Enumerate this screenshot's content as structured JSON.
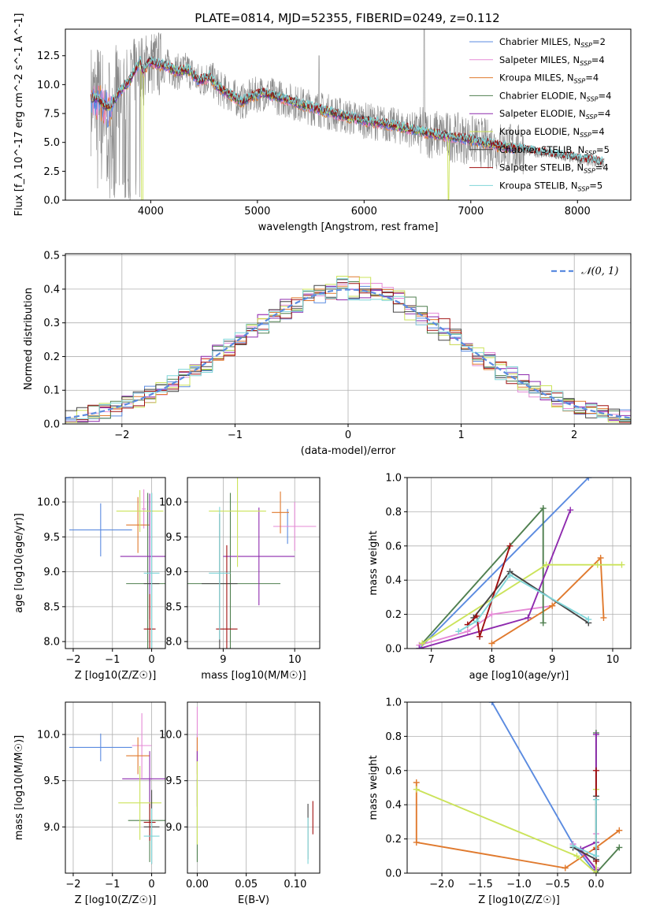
{
  "colors": {
    "chabrier_miles": "#5b8be0",
    "salpeter_miles": "#e58ad6",
    "kroupa_miles": "#e07a2e",
    "chabrier_elodie": "#4f7f4f",
    "salpeter_elodie": "#8e2aae",
    "kroupa_elodie": "#cbe35a",
    "chabrier_stelib": "#444444",
    "salpeter_stelib": "#a01010",
    "kroupa_stelib": "#7fd5d8",
    "observed": "#888888",
    "normal": "#5b8be0"
  },
  "chart_data": [
    {
      "type": "line",
      "title": "PLATE=0814, MJD=52355, FIBERID=0249, z=0.112",
      "xlabel": "wavelength [Angstrom, rest frame]",
      "ylabel": "Flux [f_λ 10^-17 erg cm^-2 s^-1 A^-1]",
      "xlim": [
        3200,
        8500
      ],
      "ylim": [
        0,
        14.8
      ],
      "xticks": [
        4000,
        5000,
        6000,
        7000,
        8000
      ],
      "yticks": [
        0.0,
        2.5,
        5.0,
        7.5,
        10.0,
        12.5
      ],
      "legend_placement": "upper right",
      "legend": [
        {
          "label": "Chabrier MILES, N_SSP=2",
          "color_key": "chabrier_miles"
        },
        {
          "label": "Salpeter MILES, N_SSP=4",
          "color_key": "salpeter_miles"
        },
        {
          "label": "Kroupa MILES, N_SSP=4",
          "color_key": "kroupa_miles"
        },
        {
          "label": "Chabrier ELODIE, N_SSP=4",
          "color_key": "chabrier_elodie"
        },
        {
          "label": "Salpeter ELODIE, N_SSP=4",
          "color_key": "salpeter_elodie"
        },
        {
          "label": "Kroupa ELODIE, N_SSP=4",
          "color_key": "kroupa_elodie"
        },
        {
          "label": "Chabrier STELIB, N_SSP=5",
          "color_key": "chabrier_stelib"
        },
        {
          "label": "Salpeter STELIB, N_SSP=4",
          "color_key": "salpeter_stelib"
        },
        {
          "label": "Kroupa STELIB, N_SSP=5",
          "color_key": "kroupa_stelib"
        }
      ],
      "model_continuum": {
        "x": [
          3500,
          3560,
          3620,
          3700,
          3800,
          3900,
          3930,
          3980,
          4050,
          4150,
          4250,
          4350,
          4450,
          4550,
          4650,
          4750,
          4860,
          4950,
          5050,
          5200,
          5400,
          5600,
          5800,
          6000,
          6200,
          6400,
          6600,
          6800,
          7000,
          7200,
          7400
        ],
        "y": [
          8.8,
          8.2,
          8.0,
          9.3,
          10.3,
          12.0,
          11.0,
          12.0,
          11.8,
          11.6,
          11.1,
          11.3,
          10.3,
          10.7,
          9.6,
          9.1,
          8.5,
          9.0,
          9.3,
          8.9,
          8.3,
          7.8,
          7.3,
          6.9,
          6.6,
          6.2,
          5.8,
          5.5,
          5.2,
          4.8,
          4.5
        ]
      },
      "observed_extends_to": 8250
    },
    {
      "type": "line",
      "xlabel": "(data-model)/error",
      "ylabel": "Normed distribution",
      "xlim": [
        -2.5,
        2.5
      ],
      "ylim": [
        0,
        0.505
      ],
      "xticks": [
        -2,
        -1,
        0,
        1,
        2
      ],
      "yticks": [
        0.0,
        0.1,
        0.2,
        0.3,
        0.4,
        0.5
      ],
      "legend_placement": "upper right",
      "legend": [
        {
          "label": "𝒩(0, 1)",
          "color_key": "normal"
        }
      ],
      "bin_width": 0.1,
      "bin_start": -2.5
    },
    {
      "type": "scatter",
      "xlabel": "Z [log10(Z/Z☉)]",
      "ylabel": "age [log10(age/yr)]",
      "xlim": [
        -2.2,
        0.35
      ],
      "ylim": [
        7.9,
        10.35
      ],
      "xticks": [
        -2,
        -1,
        0
      ],
      "yticks": [
        8.0,
        8.5,
        9.0,
        9.5,
        10.0
      ],
      "points": [
        {
          "k": "chabrier_miles",
          "x": -1.3,
          "y": 9.6,
          "xe": 0.8,
          "ye": 0.38
        },
        {
          "k": "salpeter_miles",
          "x": -0.2,
          "y": 9.9,
          "xe": 0.05,
          "ye": 0.28
        },
        {
          "k": "kroupa_miles",
          "x": -0.35,
          "y": 9.67,
          "xe": 0.3,
          "ye": 0.4
        },
        {
          "k": "chabrier_elodie",
          "x": -0.1,
          "y": 8.83,
          "xe": 0.55,
          "ye": 1.3
        },
        {
          "k": "salpeter_elodie",
          "x": -0.05,
          "y": 9.22,
          "xe": 0.75,
          "ye": 0.9
        },
        {
          "k": "kroupa_elodie",
          "x": -0.3,
          "y": 9.87,
          "xe": 0.6,
          "ye": 0.3
        },
        {
          "k": "chabrier_stelib",
          "x": 0.0,
          "y": 8.83,
          "xe": 0.2,
          "ye": 1.3
        },
        {
          "k": "salpeter_stelib",
          "x": -0.05,
          "y": 8.18,
          "xe": 0.15,
          "ye": 0.5
        },
        {
          "k": "kroupa_stelib",
          "x": 0.0,
          "y": 8.98,
          "xe": 0.2,
          "ye": 1.15
        }
      ]
    },
    {
      "type": "scatter",
      "xlabel": "mass [log10(M/M☉)]",
      "xlim": [
        8.5,
        10.35
      ],
      "ylim": [
        7.9,
        10.35
      ],
      "xticks": [
        9,
        10
      ],
      "yticks": [
        8.0,
        8.5,
        9.0,
        9.5,
        10.0
      ],
      "points": [
        {
          "k": "chabrier_miles",
          "x": 9.9,
          "y": 9.65,
          "xe": 0.1,
          "ye": 0.25
        },
        {
          "k": "salpeter_miles",
          "x": 10.0,
          "y": 9.65,
          "xe": 0.3,
          "ye": 0.35
        },
        {
          "k": "kroupa_miles",
          "x": 9.8,
          "y": 9.85,
          "xe": 0.12,
          "ye": 0.3
        },
        {
          "k": "chabrier_elodie",
          "x": 9.1,
          "y": 8.83,
          "xe": 0.7,
          "ye": 1.3
        },
        {
          "k": "salpeter_elodie",
          "x": 9.5,
          "y": 9.22,
          "xe": 0.5,
          "ye": 0.7
        },
        {
          "k": "kroupa_elodie",
          "x": 9.2,
          "y": 9.87,
          "xe": 0.4,
          "ye": 0.8
        },
        {
          "k": "chabrier_stelib",
          "x": 8.95,
          "y": 8.83,
          "xe": 0.25,
          "ye": 1.0
        },
        {
          "k": "salpeter_stelib",
          "x": 9.05,
          "y": 8.18,
          "xe": 0.15,
          "ye": 1.2
        },
        {
          "k": "kroupa_stelib",
          "x": 8.95,
          "y": 8.98,
          "xe": 0.15,
          "ye": 0.95
        }
      ]
    },
    {
      "type": "line",
      "xlabel": "age [log10(age/yr)]",
      "ylabel": "mass weight",
      "xlim": [
        6.6,
        10.3
      ],
      "ylim": [
        0,
        1.0
      ],
      "xticks": [
        7,
        8,
        9,
        10
      ],
      "yticks": [
        0.0,
        0.2,
        0.4,
        0.6,
        0.8,
        1.0
      ],
      "series": [
        {
          "k": "chabrier_miles",
          "x": [
            6.8,
            9.6
          ],
          "y": [
            0.0,
            1.0
          ]
        },
        {
          "k": "salpeter_miles",
          "x": [
            6.8,
            7.6,
            8.0,
            9.0
          ],
          "y": [
            0.02,
            0.1,
            0.2,
            0.25
          ]
        },
        {
          "k": "kroupa_miles",
          "x": [
            8.0,
            9.0,
            9.8,
            9.85
          ],
          "y": [
            0.03,
            0.25,
            0.53,
            0.18
          ]
        },
        {
          "k": "chabrier_elodie",
          "x": [
            6.85,
            8.85,
            8.85
          ],
          "y": [
            0.03,
            0.82,
            0.15
          ]
        },
        {
          "k": "salpeter_elodie",
          "x": [
            6.8,
            8.6,
            9.3
          ],
          "y": [
            0.0,
            0.18,
            0.81
          ]
        },
        {
          "k": "kroupa_elodie",
          "x": [
            6.85,
            8.9,
            9.75,
            10.15
          ],
          "y": [
            0.03,
            0.49,
            0.49,
            0.49
          ]
        },
        {
          "k": "chabrier_stelib",
          "x": [
            7.7,
            8.3,
            9.6
          ],
          "y": [
            0.18,
            0.45,
            0.15
          ]
        },
        {
          "k": "salpeter_stelib",
          "x": [
            7.6,
            7.75,
            7.8,
            8.3
          ],
          "y": [
            0.14,
            0.19,
            0.07,
            0.6
          ]
        },
        {
          "k": "kroupa_stelib",
          "x": [
            7.45,
            7.75,
            8.3,
            9.6
          ],
          "y": [
            0.1,
            0.16,
            0.43,
            0.17
          ]
        }
      ]
    },
    {
      "type": "scatter",
      "xlabel": "Z [log10(Z/Z☉)]",
      "ylabel": "mass [log10(M/M☉)]",
      "xlim": [
        -2.2,
        0.35
      ],
      "ylim": [
        8.5,
        10.35
      ],
      "xticks": [
        -2,
        -1,
        0
      ],
      "yticks": [
        9.0,
        9.5,
        10.0
      ],
      "points": [
        {
          "k": "chabrier_miles",
          "x": -1.3,
          "y": 9.86,
          "xe": 0.8,
          "ye": 0.15
        },
        {
          "k": "salpeter_miles",
          "x": -0.25,
          "y": 9.88,
          "xe": 0.25,
          "ye": 0.35
        },
        {
          "k": "kroupa_miles",
          "x": -0.35,
          "y": 9.77,
          "xe": 0.3,
          "ye": 0.2
        },
        {
          "k": "chabrier_elodie",
          "x": -0.05,
          "y": 9.07,
          "xe": 0.55,
          "ye": 0.45
        },
        {
          "k": "salpeter_elodie",
          "x": -0.05,
          "y": 9.52,
          "xe": 0.7,
          "ye": 0.3
        },
        {
          "k": "kroupa_elodie",
          "x": -0.3,
          "y": 9.26,
          "xe": 0.55,
          "ye": 0.4
        },
        {
          "k": "chabrier_stelib",
          "x": 0.0,
          "y": 9.0,
          "xe": 0.2,
          "ye": 0.4
        },
        {
          "k": "salpeter_stelib",
          "x": -0.05,
          "y": 9.05,
          "xe": 0.15,
          "ye": 0.2
        },
        {
          "k": "kroupa_stelib",
          "x": 0.0,
          "y": 8.9,
          "xe": 0.2,
          "ye": 0.3
        }
      ]
    },
    {
      "type": "scatter",
      "xlabel": "E(B-V)",
      "xlim": [
        -0.01,
        0.125
      ],
      "ylim": [
        8.5,
        10.35
      ],
      "xticks": [
        0.0,
        0.05,
        0.1
      ],
      "xtick_labels": [
        "0.00",
        "0.05",
        "0.10"
      ],
      "yticks": [
        9.0,
        9.5,
        10.0
      ],
      "points": [
        {
          "k": "chabrier_miles",
          "x": 0.0,
          "y": 9.86,
          "xe": 0.0,
          "ye": 0.15
        },
        {
          "k": "salpeter_miles",
          "x": 0.0,
          "y": 10.0,
          "xe": 0.0,
          "ye": 0.3
        },
        {
          "k": "kroupa_miles",
          "x": 0.0,
          "y": 9.77,
          "xe": 0.0,
          "ye": 0.2
        },
        {
          "k": "chabrier_elodie",
          "x": 0.0,
          "y": 9.07,
          "xe": 0.0,
          "ye": 0.45
        },
        {
          "k": "salpeter_elodie",
          "x": 0.0,
          "y": 9.52,
          "xe": 0.0,
          "ye": 0.3
        },
        {
          "k": "kroupa_elodie",
          "x": 0.0,
          "y": 9.26,
          "xe": 0.0,
          "ye": 0.45
        },
        {
          "k": "chabrier_stelib",
          "x": 0.113,
          "y": 8.95,
          "xe": 0.0,
          "ye": 0.3
        },
        {
          "k": "salpeter_stelib",
          "x": 0.118,
          "y": 9.1,
          "xe": 0.0,
          "ye": 0.18
        },
        {
          "k": "kroupa_stelib",
          "x": 0.113,
          "y": 8.85,
          "xe": 0.0,
          "ye": 0.25
        }
      ]
    },
    {
      "type": "line",
      "xlabel": "Z [log10(Z/Z☉)]",
      "ylabel": "mass weight",
      "xlim": [
        -2.45,
        0.45
      ],
      "ylim": [
        0,
        1.0
      ],
      "xticks": [
        -2.0,
        -1.5,
        -1.0,
        -0.5,
        0.0
      ],
      "xtick_labels": [
        "−2.0",
        "−1.5",
        "−1.0",
        "−0.5",
        "0.0"
      ],
      "yticks": [
        0.0,
        0.2,
        0.4,
        0.6,
        0.8,
        1.0
      ],
      "series": [
        {
          "k": "chabrier_miles",
          "x": [
            -1.35,
            -0.3,
            0.0
          ],
          "y": [
            1.0,
            0.17,
            0.0
          ]
        },
        {
          "k": "salpeter_miles",
          "x": [
            -0.3,
            0.0,
            0.0
          ],
          "y": [
            0.17,
            0.03,
            0.23
          ]
        },
        {
          "k": "kroupa_miles",
          "x": [
            -2.33,
            -2.33,
            -0.4,
            0.0,
            0.3
          ],
          "y": [
            0.53,
            0.18,
            0.03,
            0.15,
            0.25
          ]
        },
        {
          "k": "chabrier_elodie",
          "x": [
            0.0,
            0.0,
            0.3
          ],
          "y": [
            0.82,
            0.0,
            0.15
          ]
        },
        {
          "k": "salpeter_elodie",
          "x": [
            0.0,
            0.0,
            -0.2,
            0.0
          ],
          "y": [
            0.81,
            0.02,
            0.14,
            0.18
          ]
        },
        {
          "k": "kroupa_elodie",
          "x": [
            -2.33,
            -0.25,
            0.0,
            0.0
          ],
          "y": [
            0.49,
            0.1,
            0.0,
            0.49
          ]
        },
        {
          "k": "chabrier_stelib",
          "x": [
            -0.3,
            0.0,
            0.0
          ],
          "y": [
            0.15,
            0.08,
            0.45
          ]
        },
        {
          "k": "salpeter_stelib",
          "x": [
            0.0,
            0.0,
            0.0
          ],
          "y": [
            0.6,
            0.14,
            0.07
          ]
        },
        {
          "k": "kroupa_stelib",
          "x": [
            -0.3,
            0.0,
            0.0
          ],
          "y": [
            0.16,
            0.1,
            0.43
          ]
        }
      ]
    }
  ]
}
